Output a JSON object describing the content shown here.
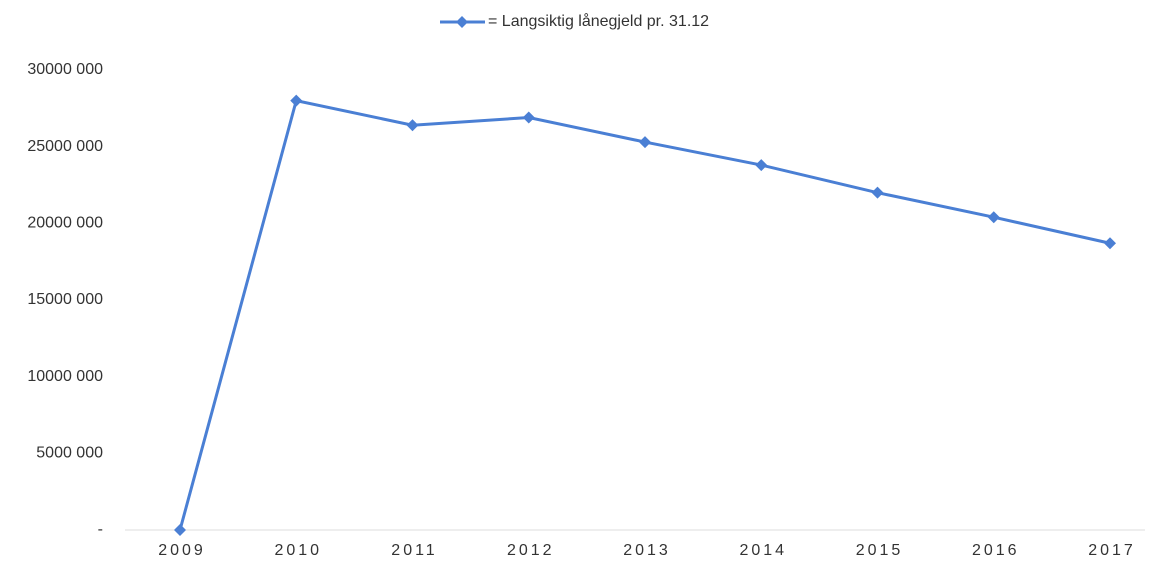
{
  "chart_data": {
    "type": "line",
    "categories": [
      "2009",
      "2010",
      "2011",
      "2012",
      "2013",
      "2014",
      "2015",
      "2016",
      "2017"
    ],
    "series": [
      {
        "name": "= Langsiktig lånegjeld pr. 31.12",
        "color": "#4a7fd4",
        "values": [
          0,
          28000000,
          26400000,
          26900000,
          25300000,
          23800000,
          22000000,
          20400000,
          18700000
        ]
      }
    ],
    "ylim": [
      0,
      30000000
    ],
    "yticks": [
      {
        "value": 0,
        "label": "-"
      },
      {
        "value": 5000000,
        "label": "5000 000"
      },
      {
        "value": 10000000,
        "label": "10000 000"
      },
      {
        "value": 15000000,
        "label": "15000 000"
      },
      {
        "value": 20000000,
        "label": "20000 000"
      },
      {
        "value": 25000000,
        "label": "25000 000"
      },
      {
        "value": 30000000,
        "label": "30000 000"
      }
    ],
    "grid": false,
    "legend": "top"
  }
}
